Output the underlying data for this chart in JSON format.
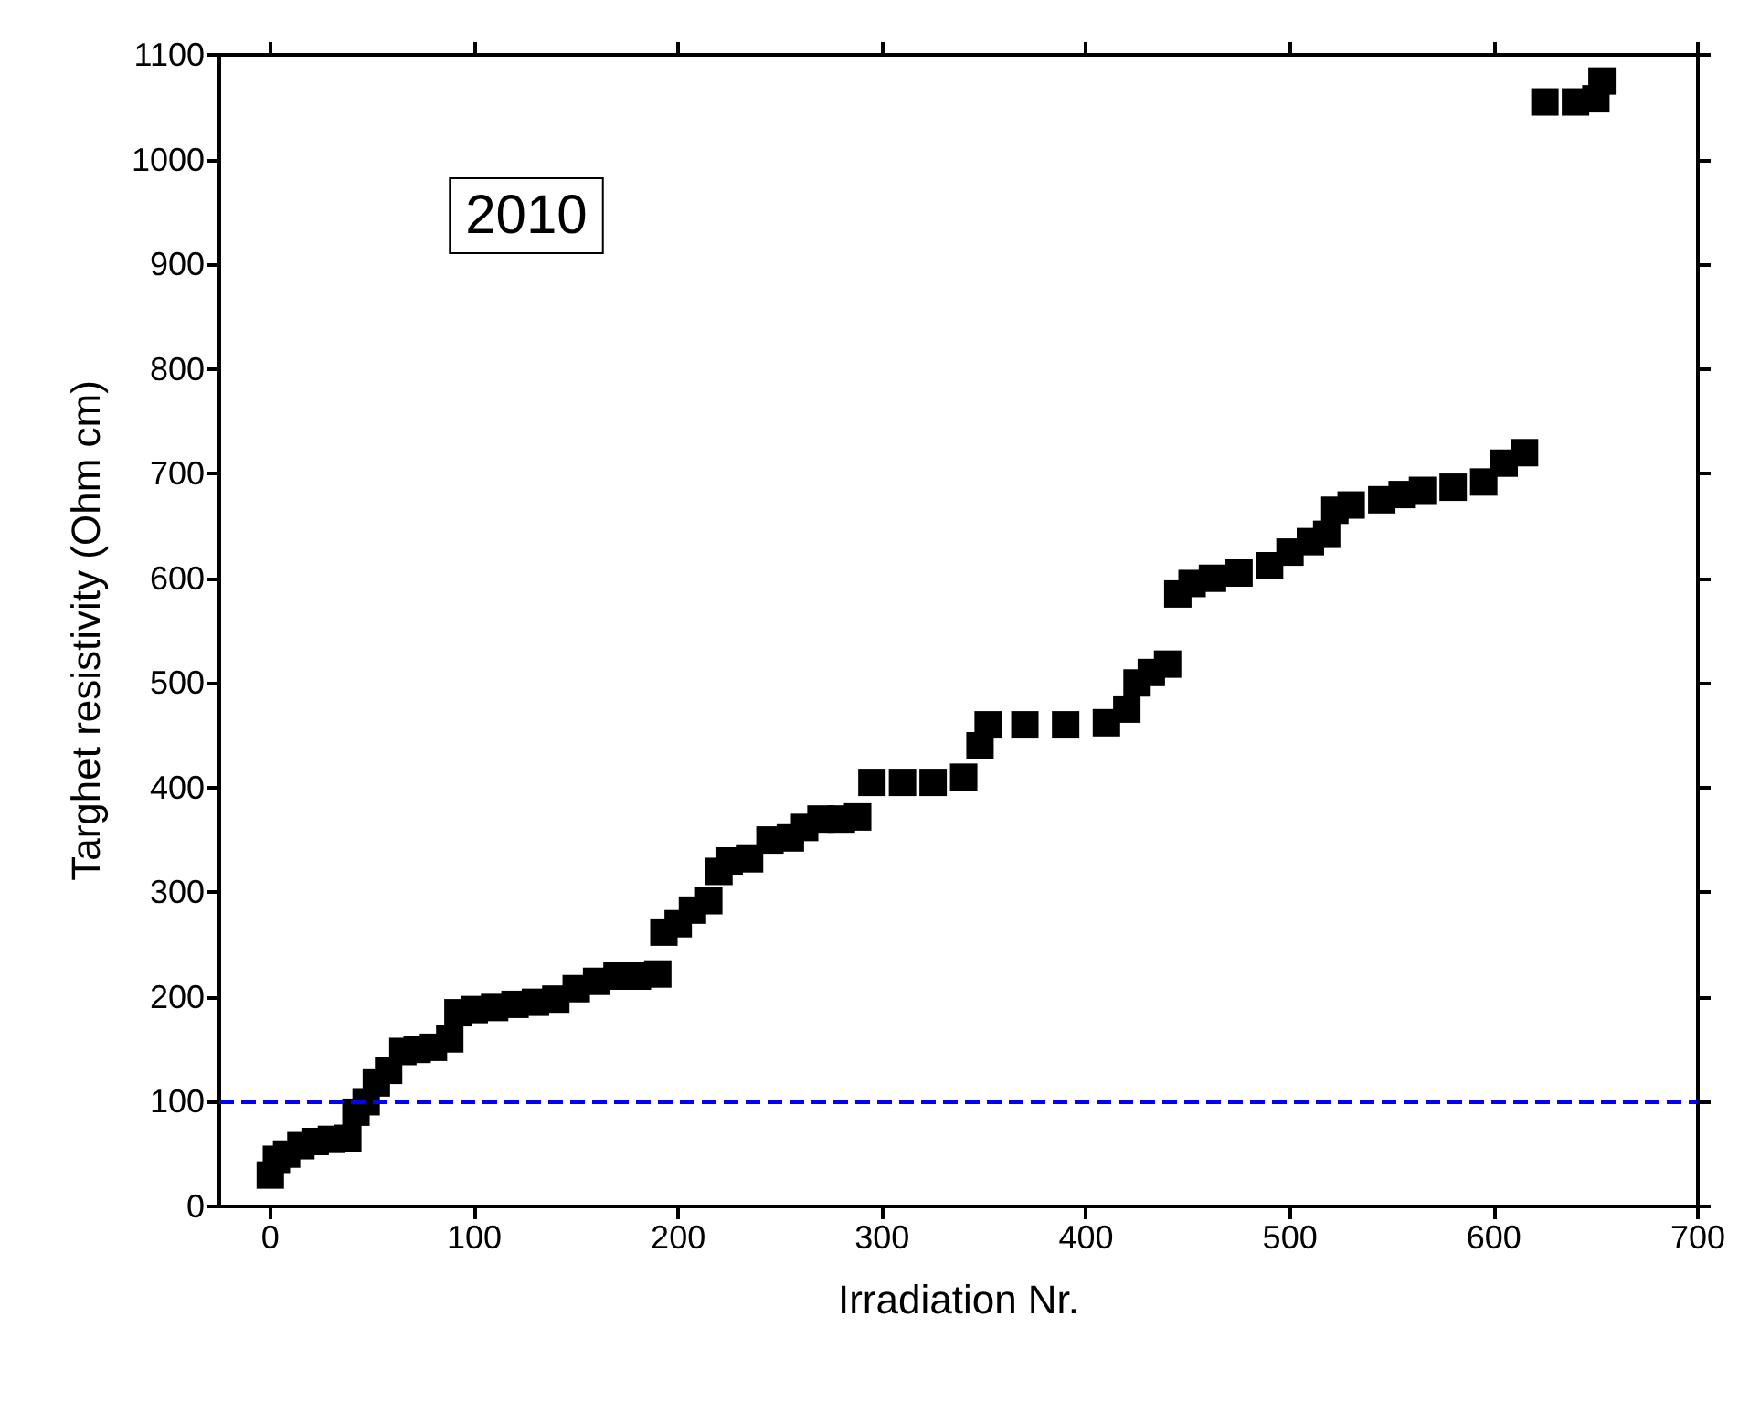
{
  "chart_data": {
    "type": "scatter",
    "xlabel": "Irradiation Nr.",
    "ylabel": "Targhet resistivity (Ohm cm)",
    "annotations": [
      "2010"
    ],
    "x": [
      0,
      3,
      8,
      15,
      22,
      30,
      38,
      42,
      47,
      52,
      58,
      65,
      72,
      80,
      88,
      92,
      100,
      110,
      120,
      130,
      140,
      150,
      160,
      170,
      180,
      190,
      193,
      200,
      207,
      215,
      220,
      225,
      235,
      245,
      255,
      262,
      270,
      280,
      288,
      295,
      310,
      325,
      340,
      348,
      352,
      370,
      390,
      410,
      420,
      425,
      432,
      440,
      445,
      452,
      462,
      475,
      490,
      500,
      510,
      518,
      522,
      530,
      545,
      555,
      565,
      580,
      595,
      605,
      615,
      625,
      640,
      650,
      653
    ],
    "series": [
      {
        "color": "#000000",
        "values": [
          30,
          45,
          50,
          58,
          62,
          64,
          65,
          90,
          100,
          118,
          130,
          148,
          150,
          152,
          160,
          185,
          188,
          190,
          193,
          195,
          198,
          208,
          215,
          220,
          220,
          222,
          262,
          270,
          283,
          292,
          320,
          330,
          332,
          350,
          352,
          362,
          370,
          370,
          372,
          405,
          405,
          405,
          410,
          440,
          460,
          460,
          460,
          462,
          475,
          500,
          510,
          518,
          585,
          595,
          600,
          605,
          612,
          625,
          635,
          642,
          665,
          670,
          675,
          680,
          684,
          687,
          692,
          710,
          720,
          1055,
          1055,
          1058,
          1075
        ]
      }
    ],
    "marker": "square",
    "xlim": [
      -25,
      700
    ],
    "xticks": [
      0,
      100,
      200,
      300,
      400,
      500,
      600,
      700
    ],
    "ylim": [
      0,
      1100
    ],
    "yticks": [
      0,
      100,
      200,
      300,
      400,
      500,
      600,
      700,
      800,
      900,
      1000,
      1100
    ],
    "ref_lines": [
      {
        "axis": "y",
        "value": 100,
        "color": "#0000ff",
        "line_style": "dashed"
      }
    ]
  }
}
